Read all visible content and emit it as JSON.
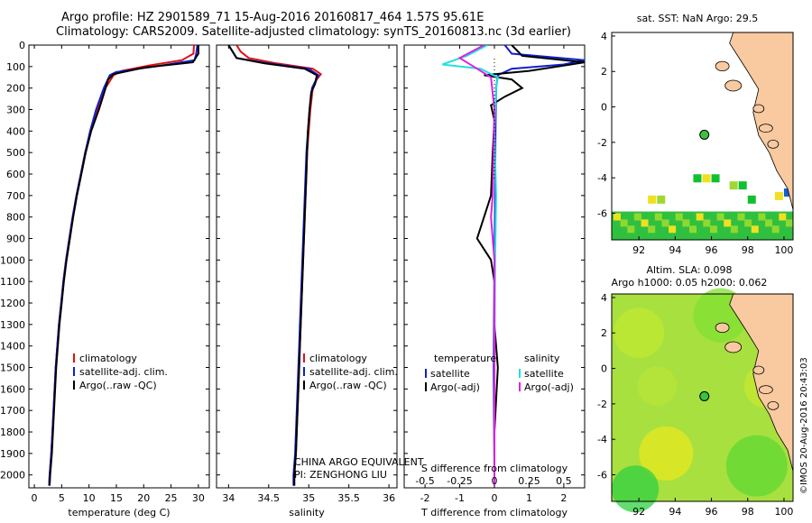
{
  "header": {
    "line1": "Argo profile: HZ 2901589_71 15-Aug-2016 20160817_464 1.57S 95.61E",
    "line2": "Climatology: CARS2009. Satellite-adjusted climatology: synTS_20160813.nc (3d earlier)"
  },
  "side_stamp": "©IMOS 20-Aug-2016 20:43:03",
  "colors": {
    "climatology": "#e01010",
    "satellite": "#1020d0",
    "argo": "#000000",
    "sat_salinity": "#20e0e0",
    "argo_salinity": "#e020e0",
    "land": "#f9c9a0",
    "warm": "#f0e020",
    "cool": "#10c030"
  },
  "chart_data": [
    {
      "type": "line",
      "id": "temperature",
      "xlabel": "temperature (deg C)",
      "xlim": [
        -1,
        32
      ],
      "ylim": [
        2060,
        0
      ],
      "xticks": [
        0,
        5,
        10,
        15,
        20,
        25,
        30
      ],
      "yticks": [
        0,
        100,
        200,
        300,
        400,
        500,
        600,
        700,
        800,
        900,
        1000,
        1100,
        1200,
        1300,
        1400,
        1500,
        1600,
        1700,
        1800,
        1900,
        2000
      ],
      "legend": [
        "climatology",
        "satellite-adj. clim.",
        "Argo(..raw -QC)"
      ],
      "series": [
        {
          "name": "climatology",
          "points": [
            [
              29.2,
              0
            ],
            [
              29.1,
              40
            ],
            [
              27,
              70
            ],
            [
              21,
              95
            ],
            [
              16,
              120
            ],
            [
              14.5,
              140
            ],
            [
              13,
              200
            ],
            [
              11.5,
              300
            ],
            [
              10.3,
              400
            ],
            [
              9.3,
              500
            ],
            [
              8.5,
              600
            ],
            [
              7.7,
              700
            ],
            [
              7,
              800
            ],
            [
              6.4,
              900
            ],
            [
              5.8,
              1000
            ],
            [
              5.3,
              1100
            ],
            [
              4.9,
              1200
            ],
            [
              4.5,
              1300
            ],
            [
              4.2,
              1400
            ],
            [
              3.9,
              1500
            ],
            [
              3.7,
              1600
            ],
            [
              3.5,
              1700
            ],
            [
              3.3,
              1800
            ],
            [
              3.1,
              1900
            ],
            [
              2.8,
              2000
            ],
            [
              2.7,
              2050
            ]
          ]
        },
        {
          "name": "satellite-adj. clim.",
          "points": [
            [
              29.8,
              0
            ],
            [
              29.6,
              40
            ],
            [
              29.3,
              70
            ],
            [
              22,
              100
            ],
            [
              15,
              125
            ],
            [
              13.8,
              140
            ],
            [
              12.7,
              200
            ],
            [
              11.3,
              300
            ],
            [
              10.2,
              400
            ],
            [
              9.3,
              500
            ],
            [
              8.5,
              600
            ],
            [
              7.7,
              700
            ],
            [
              7,
              800
            ],
            [
              6.4,
              900
            ],
            [
              5.8,
              1000
            ],
            [
              5.3,
              1100
            ],
            [
              4.9,
              1200
            ],
            [
              4.5,
              1300
            ],
            [
              4.2,
              1400
            ],
            [
              3.9,
              1500
            ],
            [
              3.7,
              1600
            ],
            [
              3.5,
              1700
            ],
            [
              3.3,
              1800
            ],
            [
              3.1,
              1900
            ],
            [
              2.8,
              2000
            ],
            [
              2.7,
              2050
            ]
          ]
        },
        {
          "name": "Argo(..raw -QC)",
          "points": [
            [
              30,
              0
            ],
            [
              30,
              40
            ],
            [
              29,
              80
            ],
            [
              20,
              105
            ],
            [
              14.5,
              135
            ],
            [
              13.5,
              160
            ],
            [
              12.8,
              220
            ],
            [
              11.8,
              300
            ],
            [
              10.4,
              400
            ],
            [
              9.4,
              500
            ],
            [
              8.6,
              600
            ],
            [
              7.8,
              700
            ],
            [
              7.1,
              800
            ],
            [
              6.5,
              900
            ],
            [
              5.9,
              1000
            ],
            [
              5.4,
              1100
            ],
            [
              5,
              1200
            ],
            [
              4.6,
              1300
            ],
            [
              4.3,
              1400
            ],
            [
              4,
              1500
            ],
            [
              3.8,
              1600
            ],
            [
              3.6,
              1700
            ],
            [
              3.4,
              1800
            ],
            [
              3.2,
              1900
            ],
            [
              2.9,
              2000
            ],
            [
              2.8,
              2050
            ]
          ]
        }
      ]
    },
    {
      "type": "line",
      "id": "salinity",
      "xlabel": "salinity",
      "xlim": [
        33.85,
        36.1
      ],
      "ylim": [
        2060,
        0
      ],
      "xticks": [
        34,
        34.5,
        35,
        35.5,
        36
      ],
      "legend": [
        "climatology",
        "satellite-adj. clim.",
        "Argo(..raw -QC)"
      ],
      "annotations": [
        "CHINA ARGO EQUIVALENT",
        "PI: ZENGHONG LIU"
      ],
      "series": [
        {
          "name": "climatology",
          "points": [
            [
              34.1,
              0
            ],
            [
              34.15,
              30
            ],
            [
              34.25,
              60
            ],
            [
              34.6,
              85
            ],
            [
              35.05,
              110
            ],
            [
              35.15,
              135
            ],
            [
              35.1,
              160
            ],
            [
              35.05,
              200
            ],
            [
              35.02,
              300
            ],
            [
              35,
              400
            ],
            [
              34.98,
              500
            ],
            [
              34.97,
              600
            ],
            [
              34.96,
              700
            ],
            [
              34.95,
              800
            ],
            [
              34.94,
              900
            ],
            [
              34.93,
              1000
            ],
            [
              34.92,
              1100
            ],
            [
              34.91,
              1200
            ],
            [
              34.9,
              1300
            ],
            [
              34.89,
              1400
            ],
            [
              34.88,
              1500
            ],
            [
              34.87,
              1600
            ],
            [
              34.86,
              1700
            ],
            [
              34.85,
              1800
            ],
            [
              34.84,
              1900
            ],
            [
              34.82,
              2000
            ],
            [
              34.82,
              2050
            ]
          ]
        },
        {
          "name": "satellite-adj. clim.",
          "points": [
            [
              34,
              0
            ],
            [
              34.05,
              30
            ],
            [
              34.1,
              60
            ],
            [
              34.5,
              85
            ],
            [
              35,
              110
            ],
            [
              35.12,
              140
            ],
            [
              35.08,
              170
            ],
            [
              35.04,
              200
            ],
            [
              35.01,
              300
            ],
            [
              34.99,
              400
            ],
            [
              34.97,
              500
            ],
            [
              34.96,
              600
            ],
            [
              34.95,
              700
            ],
            [
              34.94,
              800
            ],
            [
              34.93,
              900
            ],
            [
              34.92,
              1000
            ],
            [
              34.91,
              1100
            ],
            [
              34.9,
              1200
            ],
            [
              34.89,
              1300
            ],
            [
              34.88,
              1400
            ],
            [
              34.87,
              1500
            ],
            [
              34.86,
              1600
            ],
            [
              34.85,
              1700
            ],
            [
              34.84,
              1800
            ],
            [
              34.83,
              1900
            ],
            [
              34.81,
              2000
            ],
            [
              34.81,
              2050
            ]
          ]
        },
        {
          "name": "Argo(..raw -QC)",
          "points": [
            [
              34,
              0
            ],
            [
              34.05,
              30
            ],
            [
              34.1,
              60
            ],
            [
              34.45,
              85
            ],
            [
              34.95,
              110
            ],
            [
              35.1,
              140
            ],
            [
              35.08,
              180
            ],
            [
              35.03,
              220
            ],
            [
              35.01,
              300
            ],
            [
              34.99,
              400
            ],
            [
              34.98,
              500
            ],
            [
              34.97,
              600
            ],
            [
              34.96,
              700
            ],
            [
              34.95,
              800
            ],
            [
              34.94,
              900
            ],
            [
              34.93,
              1000
            ],
            [
              34.92,
              1100
            ],
            [
              34.91,
              1200
            ],
            [
              34.9,
              1300
            ],
            [
              34.89,
              1400
            ],
            [
              34.88,
              1500
            ],
            [
              34.87,
              1600
            ],
            [
              34.86,
              1700
            ],
            [
              34.85,
              1800
            ],
            [
              34.84,
              1900
            ],
            [
              34.82,
              2000
            ],
            [
              34.82,
              2050
            ]
          ]
        }
      ]
    },
    {
      "type": "line",
      "id": "difference",
      "xlabel": "T difference from climatology",
      "top_label": "S difference from climatology",
      "xlim": [
        -2.6,
        2.6
      ],
      "ylim": [
        2060,
        0
      ],
      "xticks": [
        -2,
        -1,
        0,
        1,
        2
      ],
      "s_ticks": [
        -0.5,
        -0.25,
        0,
        0.25,
        0.5
      ],
      "s_tick_labels": [
        "-0.5",
        "-0.25",
        "0",
        "0.25",
        "0.5"
      ],
      "legend_titles": [
        "temperature",
        "salinity"
      ],
      "legend": [
        "satellite",
        "Argo(-adj)",
        "satellite",
        "Argo(-adj)"
      ],
      "series": [
        {
          "name": "satellite",
          "quantity": "temperature",
          "points": [
            [
              0.3,
              0
            ],
            [
              0.5,
              40
            ],
            [
              2.6,
              70
            ],
            [
              2,
              90
            ],
            [
              0.5,
              110
            ],
            [
              0.1,
              140
            ],
            [
              0.05,
              200
            ],
            [
              0.03,
              400
            ],
            [
              0.02,
              700
            ],
            [
              0,
              1000
            ],
            [
              -0.02,
              1500
            ],
            [
              0,
              2000
            ],
            [
              0,
              2050
            ]
          ]
        },
        {
          "name": "Argo(-adj)",
          "quantity": "temperature",
          "points": [
            [
              0.5,
              0
            ],
            [
              0.8,
              50
            ],
            [
              2.6,
              80
            ],
            [
              1,
              120
            ],
            [
              -0.3,
              140
            ],
            [
              0.5,
              160
            ],
            [
              0.8,
              200
            ],
            [
              0.3,
              240
            ],
            [
              -0.1,
              280
            ],
            [
              0,
              350
            ],
            [
              -0.05,
              500
            ],
            [
              -0.1,
              700
            ],
            [
              -0.3,
              800
            ],
            [
              -0.5,
              900
            ],
            [
              -0.1,
              1000
            ],
            [
              0,
              1100
            ],
            [
              0,
              1300
            ],
            [
              0.1,
              1500
            ],
            [
              0,
              1800
            ],
            [
              0,
              2050
            ]
          ]
        },
        {
          "name": "satellite",
          "quantity": "salinity",
          "points": [
            [
              -0.2,
              0
            ],
            [
              -0.8,
              50
            ],
            [
              -1.5,
              90
            ],
            [
              -0.4,
              110
            ],
            [
              0.1,
              150
            ],
            [
              0.05,
              200
            ],
            [
              0,
              400
            ],
            [
              0.05,
              700
            ],
            [
              0.02,
              1000
            ],
            [
              0,
              1500
            ],
            [
              0,
              2050
            ]
          ]
        },
        {
          "name": "Argo(-adj)",
          "quantity": "salinity",
          "points": [
            [
              -0.3,
              0
            ],
            [
              -1,
              60
            ],
            [
              -0.5,
              110
            ],
            [
              -0.1,
              150
            ],
            [
              0,
              300
            ],
            [
              -0.05,
              700
            ],
            [
              -0.1,
              800
            ],
            [
              -0.05,
              900
            ],
            [
              0,
              1000
            ],
            [
              0,
              1500
            ],
            [
              0,
              2050
            ]
          ]
        }
      ]
    },
    {
      "type": "heatmap",
      "id": "sst_map",
      "title": "sat. SST: NaN Argo: 29.5",
      "xlim": [
        90.5,
        100.5
      ],
      "ylim": [
        -7.5,
        4.2
      ],
      "xticks": [
        92,
        94,
        96,
        98,
        100
      ],
      "yticks": [
        -6,
        -4,
        -2,
        0,
        2,
        4
      ],
      "marker": [
        95.61,
        -1.57
      ]
    },
    {
      "type": "heatmap",
      "id": "sla_map",
      "title": "Altim. SLA: 0.098",
      "subtitle": "Argo h1000: 0.05 h2000: 0.062",
      "xlim": [
        90.5,
        100.5
      ],
      "ylim": [
        -7.5,
        4.2
      ],
      "xticks": [
        92,
        94,
        96,
        98,
        100
      ],
      "yticks": [
        -6,
        -4,
        -2,
        0,
        2,
        4
      ],
      "marker": [
        95.61,
        -1.57
      ]
    }
  ]
}
